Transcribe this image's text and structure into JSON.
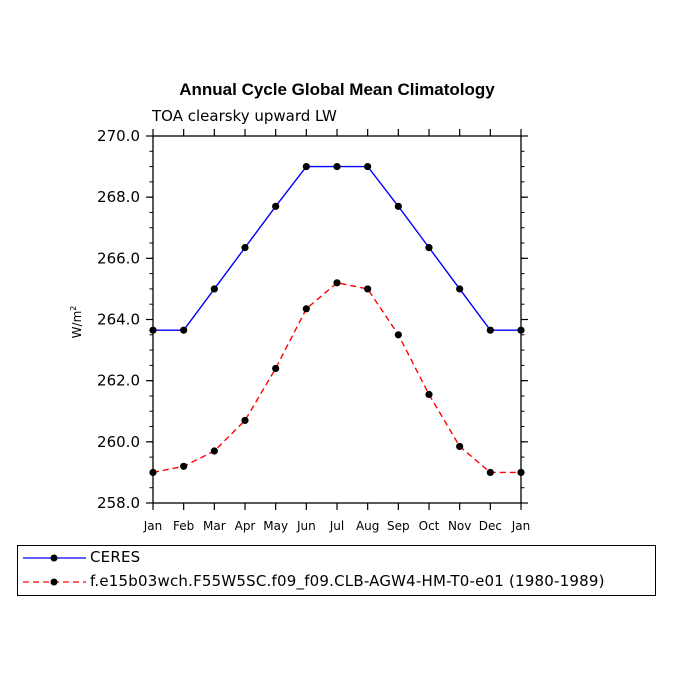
{
  "chart_data": {
    "type": "line",
    "title": "Annual Cycle Global Mean Climatology",
    "subtitle": "TOA clearsky upward LW",
    "ylabel": "W/m",
    "ylabel_superscript": "2",
    "categories": [
      "Jan",
      "Feb",
      "Mar",
      "Apr",
      "May",
      "Jun",
      "Jul",
      "Aug",
      "Sep",
      "Oct",
      "Nov",
      "Dec",
      "Jan"
    ],
    "ylim": [
      258.0,
      270.0
    ],
    "yticks": [
      "258.0",
      "260.0",
      "262.0",
      "264.0",
      "266.0",
      "268.0",
      "270.0"
    ],
    "grid": false,
    "series": [
      {
        "name": "CERES",
        "color": "#0000ff",
        "line_style": "solid",
        "values": [
          263.65,
          263.65,
          265.0,
          266.35,
          267.7,
          269.0,
          269.0,
          269.0,
          267.7,
          266.35,
          265.0,
          263.65,
          263.65
        ]
      },
      {
        "name": "f.e15b03wch.F55W5SC.f09_f09.CLB-AGW4-HM-T0-e01 (1980-1989)",
        "color": "#ff0000",
        "line_style": "dashed",
        "values": [
          259.0,
          259.2,
          259.7,
          260.7,
          262.4,
          264.35,
          265.2,
          265.0,
          263.5,
          261.55,
          259.85,
          259.0,
          259.0
        ]
      }
    ]
  }
}
